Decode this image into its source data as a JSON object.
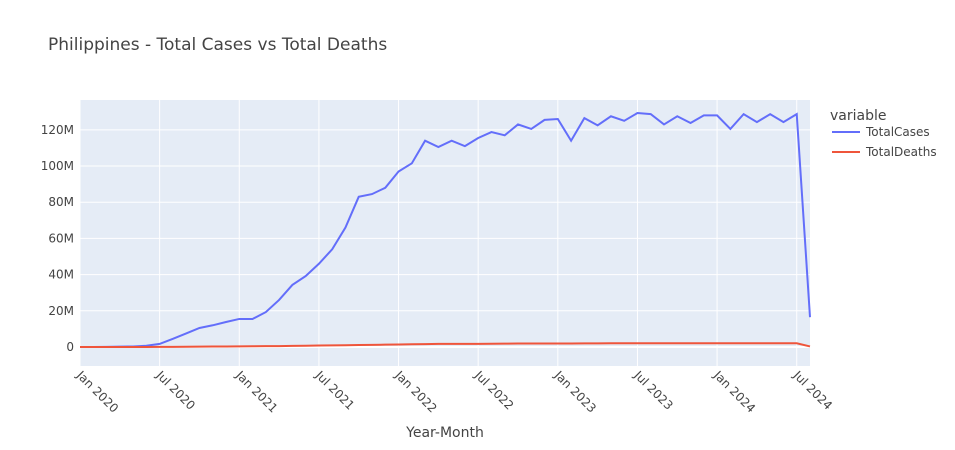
{
  "chart_data": {
    "type": "line",
    "title": "Philippines - Total Cases vs Total Deaths",
    "xlabel": "Year-Month",
    "legend_title": "variable",
    "legend_position": "right",
    "grid": true,
    "x": [
      "2020-01",
      "2020-02",
      "2020-03",
      "2020-04",
      "2020-05",
      "2020-06",
      "2020-07",
      "2020-08",
      "2020-09",
      "2020-10",
      "2020-11",
      "2020-12",
      "2021-01",
      "2021-02",
      "2021-03",
      "2021-04",
      "2021-05",
      "2021-06",
      "2021-07",
      "2021-08",
      "2021-09",
      "2021-10",
      "2021-11",
      "2021-12",
      "2022-01",
      "2022-02",
      "2022-03",
      "2022-04",
      "2022-05",
      "2022-06",
      "2022-07",
      "2022-08",
      "2022-09",
      "2022-10",
      "2022-11",
      "2022-12",
      "2023-01",
      "2023-02",
      "2023-03",
      "2023-04",
      "2023-05",
      "2023-06",
      "2023-07",
      "2023-08",
      "2023-09",
      "2023-10",
      "2023-11",
      "2023-12",
      "2024-01",
      "2024-02",
      "2024-03",
      "2024-04",
      "2024-05",
      "2024-06",
      "2024-07",
      "2024-08"
    ],
    "series": [
      {
        "name": "TotalCases",
        "color": "#636efa",
        "values": [
          0,
          0,
          100000,
          200000,
          300000,
          700000,
          1700000,
          4500000,
          7500000,
          10500000,
          12000000,
          13800000,
          15500000,
          15500000,
          19300000,
          26000000,
          34300000,
          39200000,
          46000000,
          54000000,
          66000000,
          83000000,
          84500000,
          88000000,
          97000000,
          101500000,
          114000000,
          110500000,
          114000000,
          111000000,
          115500000,
          118800000,
          117000000,
          123000000,
          120500000,
          125500000,
          126000000,
          114000000,
          126500000,
          122500000,
          127500000,
          125000000,
          129300000,
          128700000,
          123000000,
          127500000,
          123800000,
          128000000,
          128000000,
          120500000,
          128700000,
          124300000,
          128700000,
          124300000,
          128700000,
          16500000
        ]
      },
      {
        "name": "TotalDeaths",
        "color": "#ef553b",
        "values": [
          0,
          0,
          0,
          0,
          10000,
          20000,
          50000,
          100000,
          150000,
          200000,
          250000,
          300000,
          350000,
          400000,
          450000,
          500000,
          600000,
          700000,
          800000,
          900000,
          1000000,
          1100000,
          1200000,
          1300000,
          1400000,
          1500000,
          1600000,
          1700000,
          1700000,
          1700000,
          1750000,
          1800000,
          1850000,
          1900000,
          1900000,
          1950000,
          1950000,
          1900000,
          2000000,
          2000000,
          2050000,
          2050000,
          2050000,
          2050000,
          2050000,
          2050000,
          2050000,
          2050000,
          2050000,
          2050000,
          2050000,
          2050000,
          2050000,
          2050000,
          2050000,
          300000
        ]
      }
    ],
    "xlim": [
      "2020-01",
      "2024-08"
    ],
    "xticks": [
      {
        "value": "2020-01",
        "label": "Jan 2020"
      },
      {
        "value": "2020-07",
        "label": "Jul 2020"
      },
      {
        "value": "2021-01",
        "label": "Jan 2021"
      },
      {
        "value": "2021-07",
        "label": "Jul 2021"
      },
      {
        "value": "2022-01",
        "label": "Jan 2022"
      },
      {
        "value": "2022-07",
        "label": "Jul 2022"
      },
      {
        "value": "2023-01",
        "label": "Jan 2023"
      },
      {
        "value": "2023-07",
        "label": "Jul 2023"
      },
      {
        "value": "2024-01",
        "label": "Jan 2024"
      },
      {
        "value": "2024-07",
        "label": "Jul 2024"
      }
    ],
    "ylim": [
      -10500000,
      136500000
    ],
    "yticks": [
      0,
      {
        "value": 20000000,
        "label": "20M"
      },
      {
        "value": 40000000,
        "label": "40M"
      },
      {
        "value": 60000000,
        "label": "60M"
      },
      {
        "value": 80000000,
        "label": "80M"
      },
      {
        "value": 100000000,
        "label": "100M"
      },
      {
        "value": 120000000,
        "label": "120M"
      }
    ]
  }
}
